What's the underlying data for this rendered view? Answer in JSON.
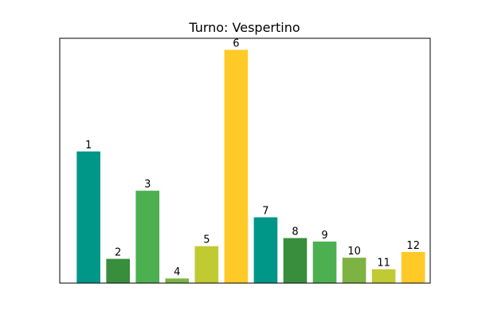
{
  "chart_data": {
    "type": "bar",
    "title": "Turno: Vespertino",
    "categories": [
      "1",
      "2",
      "3",
      "4",
      "5",
      "6",
      "7",
      "8",
      "9",
      "10",
      "11",
      "12"
    ],
    "values": [
      5.7,
      1.05,
      4.0,
      0.2,
      1.6,
      10.1,
      2.85,
      1.95,
      1.8,
      1.1,
      0.6,
      1.35
    ],
    "data_labels": [
      "1",
      "2",
      "3",
      "4",
      "5",
      "6",
      "7",
      "8",
      "9",
      "10",
      "11",
      "12"
    ],
    "colors": [
      "#009688",
      "#388e3c",
      "#4caf50",
      "#7cb342",
      "#c0ca33",
      "#ffca28",
      "#009688",
      "#388e3c",
      "#4caf50",
      "#7cb342",
      "#c0ca33",
      "#ffca28"
    ],
    "xlabel": "",
    "ylabel": "",
    "ylim": [
      0,
      10.6
    ],
    "grid": false,
    "axes_ticks": false
  }
}
